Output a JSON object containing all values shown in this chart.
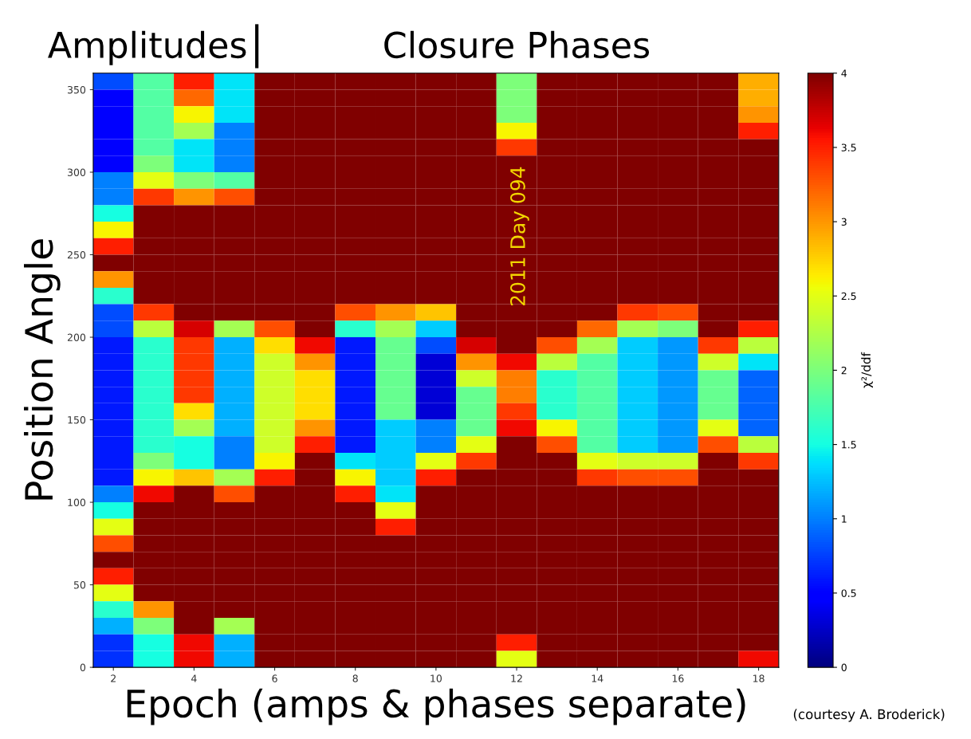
{
  "chart_data": {
    "type": "heatmap",
    "xlabel": "Epoch (amps & phases separate)",
    "ylabel": "Position Angle",
    "clabel": "χ²/ddf",
    "annotations": [
      "Amplitudes",
      "Closure Phases",
      "2011 Day 094",
      "(courtesy A. Broderick)"
    ],
    "categories": [
      "2",
      null,
      "4",
      null,
      "6",
      null,
      "8",
      null,
      "10",
      null,
      "12",
      null,
      "14",
      null,
      "16",
      null,
      "18"
    ],
    "ylim": [
      0,
      360
    ],
    "yticks": [
      0,
      50,
      100,
      150,
      200,
      250,
      300,
      350
    ],
    "clim": [
      0,
      4
    ],
    "cticks": [
      0,
      0.5,
      1,
      1.5,
      2,
      2.5,
      3,
      3.5,
      4
    ],
    "cells": [
      [
        0.8,
        1.8,
        3.5,
        1.4,
        4,
        4,
        4,
        4,
        4,
        4,
        2.0,
        4,
        4,
        4,
        4,
        4,
        2.9
      ],
      [
        0.5,
        1.8,
        3.2,
        1.4,
        4,
        4,
        4,
        4,
        4,
        4,
        2.0,
        4,
        4,
        4,
        4,
        4,
        2.9
      ],
      [
        0.5,
        1.8,
        2.6,
        1.4,
        4,
        4,
        4,
        4,
        4,
        4,
        2.0,
        4,
        4,
        4,
        4,
        4,
        3.0
      ],
      [
        0.5,
        1.8,
        2.2,
        1.0,
        4,
        4,
        4,
        4,
        4,
        4,
        2.6,
        4,
        4,
        4,
        4,
        4,
        3.5
      ],
      [
        0.5,
        1.8,
        1.4,
        1.0,
        4,
        4,
        4,
        4,
        4,
        4,
        3.4,
        4,
        4,
        4,
        4,
        4,
        4
      ],
      [
        0.5,
        2.0,
        1.4,
        1.0,
        4,
        4,
        4,
        4,
        4,
        4,
        4,
        4,
        4,
        4,
        4,
        4,
        4
      ],
      [
        1.0,
        2.5,
        2.0,
        1.8,
        4,
        4,
        4,
        4,
        4,
        4,
        4,
        4,
        4,
        4,
        4,
        4,
        4
      ],
      [
        1.0,
        3.4,
        3.0,
        3.3,
        4,
        4,
        4,
        4,
        4,
        4,
        4,
        4,
        4,
        4,
        4,
        4,
        4
      ],
      [
        1.5,
        4,
        4,
        4,
        4,
        4,
        4,
        4,
        4,
        4,
        4,
        4,
        4,
        4,
        4,
        4,
        4
      ],
      [
        2.6,
        4,
        4,
        4,
        4,
        4,
        4,
        4,
        4,
        4,
        4,
        4,
        4,
        4,
        4,
        4,
        4
      ],
      [
        3.5,
        4,
        4,
        4,
        4,
        4,
        4,
        4,
        4,
        4,
        4,
        4,
        4,
        4,
        4,
        4,
        4
      ],
      [
        4,
        4,
        4,
        4,
        4,
        4,
        4,
        4,
        4,
        4,
        4,
        4,
        4,
        4,
        4,
        4,
        4
      ],
      [
        3.0,
        4,
        4,
        4,
        4,
        4,
        4,
        4,
        4,
        4,
        4,
        4,
        4,
        4,
        4,
        4,
        4
      ],
      [
        1.6,
        4,
        4,
        4,
        4,
        4,
        4,
        4,
        4,
        4,
        4,
        4,
        4,
        4,
        4,
        4,
        4
      ],
      [
        0.8,
        3.4,
        4,
        4,
        4,
        4,
        3.3,
        3.0,
        2.8,
        4,
        4,
        4,
        4,
        3.4,
        3.3,
        4,
        4
      ],
      [
        0.8,
        2.3,
        3.7,
        2.2,
        3.3,
        4,
        1.6,
        2.2,
        1.3,
        4,
        4,
        4,
        3.2,
        2.2,
        2.0,
        4,
        3.5
      ],
      [
        0.6,
        1.6,
        3.4,
        1.2,
        2.7,
        3.6,
        0.6,
        1.9,
        0.8,
        3.7,
        4,
        3.3,
        2.2,
        1.3,
        1.1,
        3.4,
        2.3
      ],
      [
        0.6,
        1.6,
        3.4,
        1.2,
        2.4,
        3.0,
        0.6,
        1.9,
        0.3,
        3.0,
        3.6,
        2.3,
        1.8,
        1.3,
        1.1,
        2.4,
        1.4
      ],
      [
        0.6,
        1.6,
        3.4,
        1.2,
        2.4,
        2.7,
        0.6,
        1.9,
        0.3,
        2.4,
        3.1,
        1.6,
        1.8,
        1.3,
        1.1,
        1.9,
        0.9
      ],
      [
        0.6,
        1.6,
        3.4,
        1.2,
        2.4,
        2.7,
        0.6,
        1.9,
        0.3,
        1.9,
        3.1,
        1.6,
        1.8,
        1.3,
        1.1,
        1.9,
        0.9
      ],
      [
        0.6,
        1.6,
        2.7,
        1.2,
        2.4,
        2.7,
        0.6,
        1.9,
        0.3,
        1.9,
        3.4,
        1.6,
        1.8,
        1.3,
        1.1,
        1.9,
        0.9
      ],
      [
        0.6,
        1.6,
        2.2,
        1.2,
        2.4,
        3.0,
        0.6,
        1.3,
        1.0,
        1.9,
        3.6,
        2.6,
        1.8,
        1.3,
        1.1,
        2.5,
        0.9
      ],
      [
        0.6,
        1.6,
        1.5,
        1.0,
        2.4,
        3.5,
        0.6,
        1.3,
        1.0,
        2.5,
        4,
        3.3,
        1.8,
        1.3,
        1.1,
        3.3,
        2.3
      ],
      [
        0.6,
        2.0,
        1.5,
        1.0,
        2.6,
        4,
        1.4,
        1.3,
        2.5,
        3.4,
        4,
        4,
        2.5,
        2.4,
        2.4,
        4,
        3.4
      ],
      [
        0.6,
        2.6,
        2.8,
        2.2,
        3.5,
        4,
        2.6,
        1.3,
        3.5,
        4,
        4,
        4,
        3.4,
        3.3,
        3.3,
        4,
        4
      ],
      [
        1.0,
        3.6,
        4,
        3.3,
        4,
        4,
        3.5,
        1.4,
        4,
        4,
        4,
        4,
        4,
        4,
        4,
        4,
        4
      ],
      [
        1.5,
        4,
        4,
        4,
        4,
        4,
        4,
        2.5,
        4,
        4,
        4,
        4,
        4,
        4,
        4,
        4,
        4
      ],
      [
        2.5,
        4,
        4,
        4,
        4,
        4,
        4,
        3.5,
        4,
        4,
        4,
        4,
        4,
        4,
        4,
        4,
        4
      ],
      [
        3.3,
        4,
        4,
        4,
        4,
        4,
        4,
        4,
        4,
        4,
        4,
        4,
        4,
        4,
        4,
        4,
        4
      ],
      [
        4,
        4,
        4,
        4,
        4,
        4,
        4,
        4,
        4,
        4,
        4,
        4,
        4,
        4,
        4,
        4,
        4
      ],
      [
        3.5,
        4,
        4,
        4,
        4,
        4,
        4,
        4,
        4,
        4,
        4,
        4,
        4,
        4,
        4,
        4,
        4
      ],
      [
        2.5,
        4,
        4,
        4,
        4,
        4,
        4,
        4,
        4,
        4,
        4,
        4,
        4,
        4,
        4,
        4,
        4
      ],
      [
        1.6,
        3.0,
        4,
        4,
        4,
        4,
        4,
        4,
        4,
        4,
        4,
        4,
        4,
        4,
        4,
        4,
        4
      ],
      [
        1.2,
        2.0,
        4,
        2.2,
        4,
        4,
        4,
        4,
        4,
        4,
        4,
        4,
        4,
        4,
        4,
        4,
        4
      ],
      [
        0.7,
        1.5,
        3.6,
        1.2,
        4,
        4,
        4,
        4,
        4,
        4,
        3.5,
        4,
        4,
        4,
        4,
        4,
        4
      ],
      [
        0.7,
        1.5,
        3.6,
        1.2,
        4,
        4,
        4,
        4,
        4,
        4,
        2.5,
        4,
        4,
        4,
        4,
        4,
        3.6
      ]
    ]
  }
}
